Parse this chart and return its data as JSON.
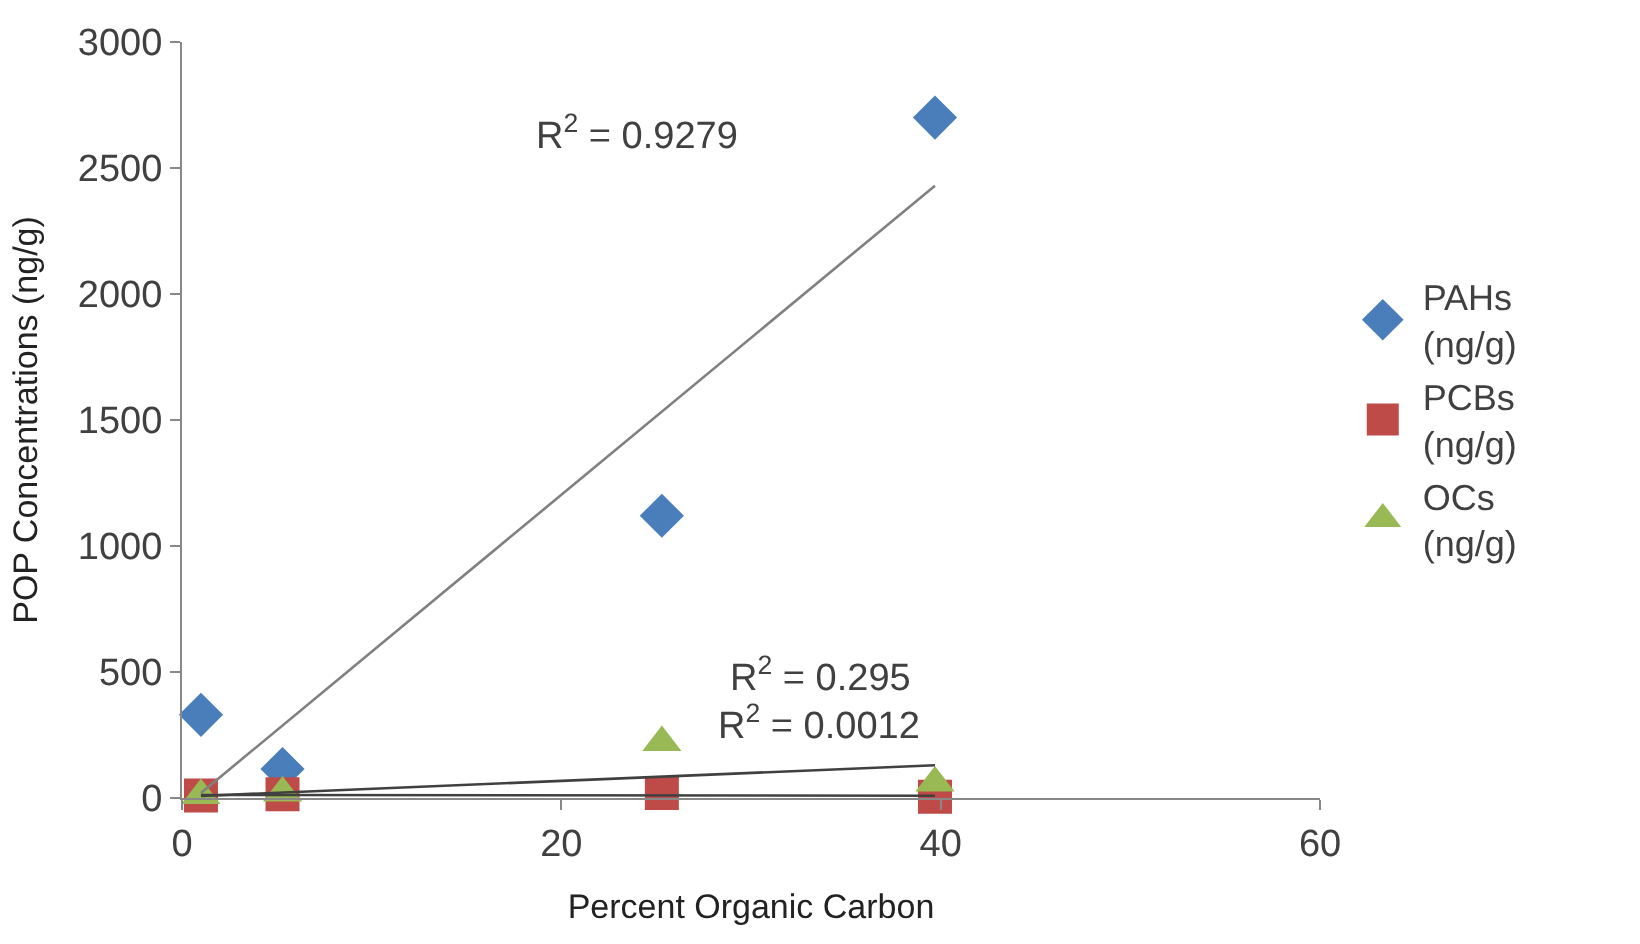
{
  "chart_data": {
    "type": "scatter",
    "xlabel": "Percent Organic Carbon",
    "ylabel": "POP Concentrations (ng/g)",
    "xlim": [
      0,
      60
    ],
    "xticks": [
      0,
      20,
      40,
      60
    ],
    "ylim": [
      0,
      3000
    ],
    "yticks": [
      0,
      500,
      1000,
      1500,
      2000,
      2500,
      3000
    ],
    "legend": "right",
    "series": [
      {
        "name": "PAHs (ng/g)",
        "color": "#4a7ebb",
        "marker": "diamond",
        "x": [
          1,
          5.3,
          25.3,
          39.7
        ],
        "values": [
          330,
          115,
          1120,
          2700
        ]
      },
      {
        "name": "PCBs (ng/g)",
        "color": "#be4b48",
        "marker": "square",
        "x": [
          1,
          5.3,
          25.3,
          39.7
        ],
        "values": [
          10,
          15,
          20,
          5
        ]
      },
      {
        "name": "OCs (ng/g)",
        "color": "#98b954",
        "marker": "triangle",
        "x": [
          1,
          5.3,
          25.3,
          39.7
        ],
        "values": [
          10,
          20,
          220,
          60
        ]
      },
      {
        "type": "line",
        "color": "#808080",
        "marker": "none",
        "x": [
          1,
          39.7
        ],
        "values": [
          20,
          2430
        ]
      },
      {
        "type": "line",
        "color": "#404040",
        "marker": "none",
        "x": [
          1,
          39.7
        ],
        "values": [
          8,
          130
        ]
      },
      {
        "type": "line",
        "color": "#404040",
        "marker": "none",
        "x": [
          1,
          39.7
        ],
        "values": [
          12,
          9
        ]
      }
    ],
    "annotations": [
      "R$^{2}$ = 0.9279",
      "R$^{2}$ = 0.295",
      "R$^{2}$ = 0.0012"
    ]
  }
}
